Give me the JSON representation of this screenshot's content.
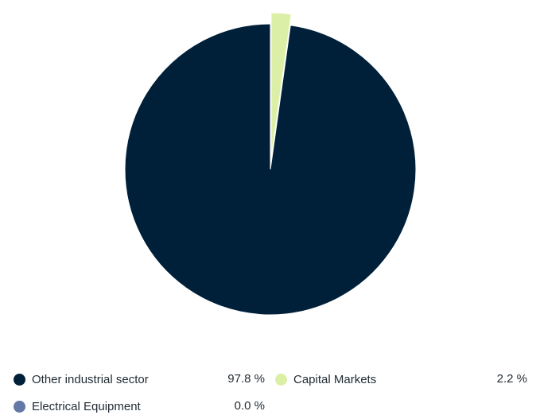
{
  "chart_data": {
    "type": "pie",
    "title": "",
    "slices": [
      {
        "label": "Other industrial sector",
        "value": 97.8,
        "value_text": "97.8 %",
        "color": "#00203a",
        "exploded": false
      },
      {
        "label": "Capital Markets",
        "value": 2.2,
        "value_text": "2.2 %",
        "color": "#dcefa6",
        "exploded": true
      },
      {
        "label": "Electrical Equipment",
        "value": 0.0,
        "value_text": "0.0 %",
        "color": "#6479a6",
        "exploded": false
      }
    ],
    "legend_position": "bottom"
  }
}
